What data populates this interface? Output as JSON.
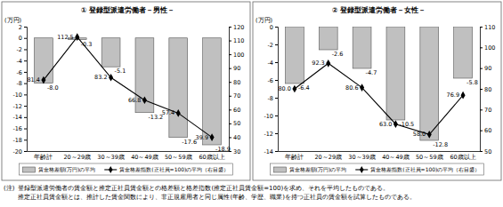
{
  "chart_data": [
    {
      "type": "bar",
      "title": "① 登録型派遣労働者－男性－",
      "y_label": "(万円)",
      "categories": [
        "年齢計",
        "20～29歳",
        "30～39歳",
        "40～49歳",
        "50～59歳",
        "60歳以上"
      ],
      "series": [
        {
          "name": "賃金格差額(万円)の平均",
          "type": "bar",
          "color": "#c0c0c0",
          "values": [
            -8.0,
            -0.3,
            -5.1,
            -13.2,
            -17.6,
            -18.9
          ],
          "value_labels": [
            "-8.0",
            "-0.3",
            "-5.1",
            "-13.2",
            "-17.6",
            "-18.9"
          ]
        },
        {
          "name": "賃金格差指数(正社員=100)の平均（右目盛）",
          "type": "line",
          "axis": "y2",
          "color": "#000000",
          "marker": "diamond",
          "values": [
            81.4,
            112.5,
            83.2,
            66.8,
            57.4,
            39.9
          ],
          "value_labels": [
            "81.4",
            "112.5",
            "83.2",
            "66.8",
            "57.4",
            "39.9"
          ]
        }
      ],
      "ylim": [
        -20,
        2
      ],
      "yticks": [
        -20,
        -18,
        -16,
        -14,
        -12,
        -10,
        -8,
        -6,
        -4,
        -2,
        0,
        2
      ],
      "y2lim": [
        30,
        120
      ],
      "y2ticks": [
        30,
        40,
        50,
        60,
        70,
        80,
        90,
        100,
        110,
        120
      ],
      "data_labels": true,
      "grid": false,
      "legend": "bottom"
    },
    {
      "type": "bar",
      "title": "② 登録型派遣労働者－女性－",
      "y_label": "(万円)",
      "categories": [
        "年齢計",
        "20～29歳",
        "30～39歳",
        "40～49歳",
        "50～59歳",
        "60歳以上"
      ],
      "series": [
        {
          "name": "賃金格差額(万円)の平均",
          "type": "bar",
          "color": "#c0c0c0",
          "values": [
            -6.4,
            -2.6,
            -4.7,
            -10.5,
            -12.8,
            -5.8
          ],
          "value_labels": [
            "-6.4",
            "-2.6",
            "-4.7",
            "-10.5",
            "-12.8",
            "-5.8"
          ]
        },
        {
          "name": "賃金格差指数(正社員=100)の平均（右目盛）",
          "type": "line",
          "axis": "y2",
          "color": "#000000",
          "marker": "diamond",
          "values": [
            80.0,
            92.3,
            80.6,
            63.0,
            58.0,
            76.9
          ],
          "value_labels": [
            "80.0",
            "92.3",
            "80.6",
            "63.0",
            "58.0",
            "76.9"
          ]
        }
      ],
      "ylim": [
        -14,
        0
      ],
      "yticks": [
        -14,
        -12,
        -10,
        -8,
        -6,
        -4,
        -2,
        0
      ],
      "y2lim": [
        50,
        110
      ],
      "y2ticks": [
        50,
        60,
        70,
        80,
        90,
        100,
        110
      ],
      "data_labels": true,
      "grid": false,
      "legend": "bottom"
    }
  ],
  "notes": [
    "(注)",
    "登録型派遣労働者の賃金額と推定正社員賃金額との格差額と格差指数(推定正社員賃金額=100)を求め、それを平均したものである。",
    "推定正社員賃金額とは、推計した賃金関数により、非正規雇用者と同じ属性(年齢、学歴、職業)を持つ正社員の賃金額を試算したものである。"
  ]
}
